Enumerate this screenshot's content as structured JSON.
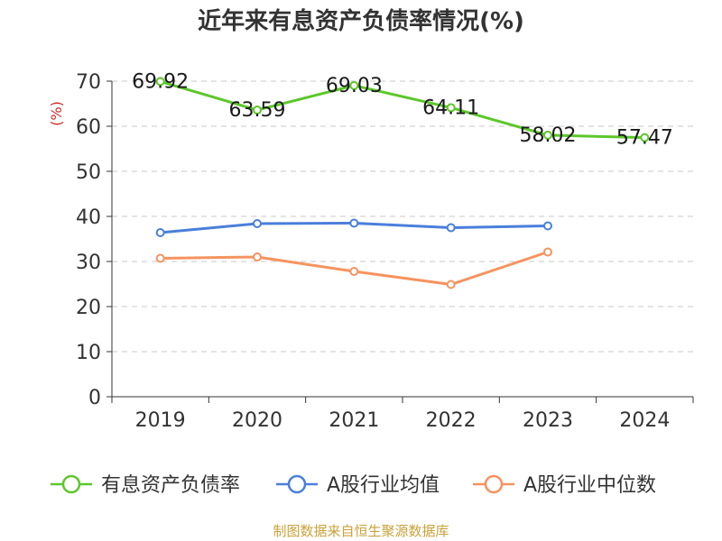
{
  "chart_data": {
    "type": "line",
    "title": "近年来有息资产负债率情况(%)",
    "ylabel": "(%)",
    "xlabel": "",
    "categories": [
      "2019",
      "2020",
      "2021",
      "2022",
      "2023",
      "2024"
    ],
    "ylim": [
      0,
      70
    ],
    "yticks": [
      0,
      10,
      20,
      30,
      40,
      50,
      60,
      70
    ],
    "grid": true,
    "legend_position": "bottom",
    "series": [
      {
        "name": "有息资产负债率",
        "color": "#5dc72a",
        "values": [
          69.92,
          63.59,
          69.03,
          64.11,
          58.02,
          57.47
        ],
        "labels": [
          "69.92",
          "63.59",
          "69.03",
          "64.11",
          "58.02",
          "57.47"
        ]
      },
      {
        "name": "A股行业均值",
        "color": "#4a7fdb",
        "values": [
          36.4,
          38.4,
          38.5,
          37.5,
          37.9,
          null
        ]
      },
      {
        "name": "A股行业中位数",
        "color": "#f5935f",
        "values": [
          30.7,
          31.0,
          27.8,
          24.9,
          32.1,
          null
        ]
      }
    ]
  },
  "source": {
    "text": "制图数据来自恒生聚源数据库",
    "color": "#c8a23a"
  },
  "ylabel_color": "#cc2a2a"
}
